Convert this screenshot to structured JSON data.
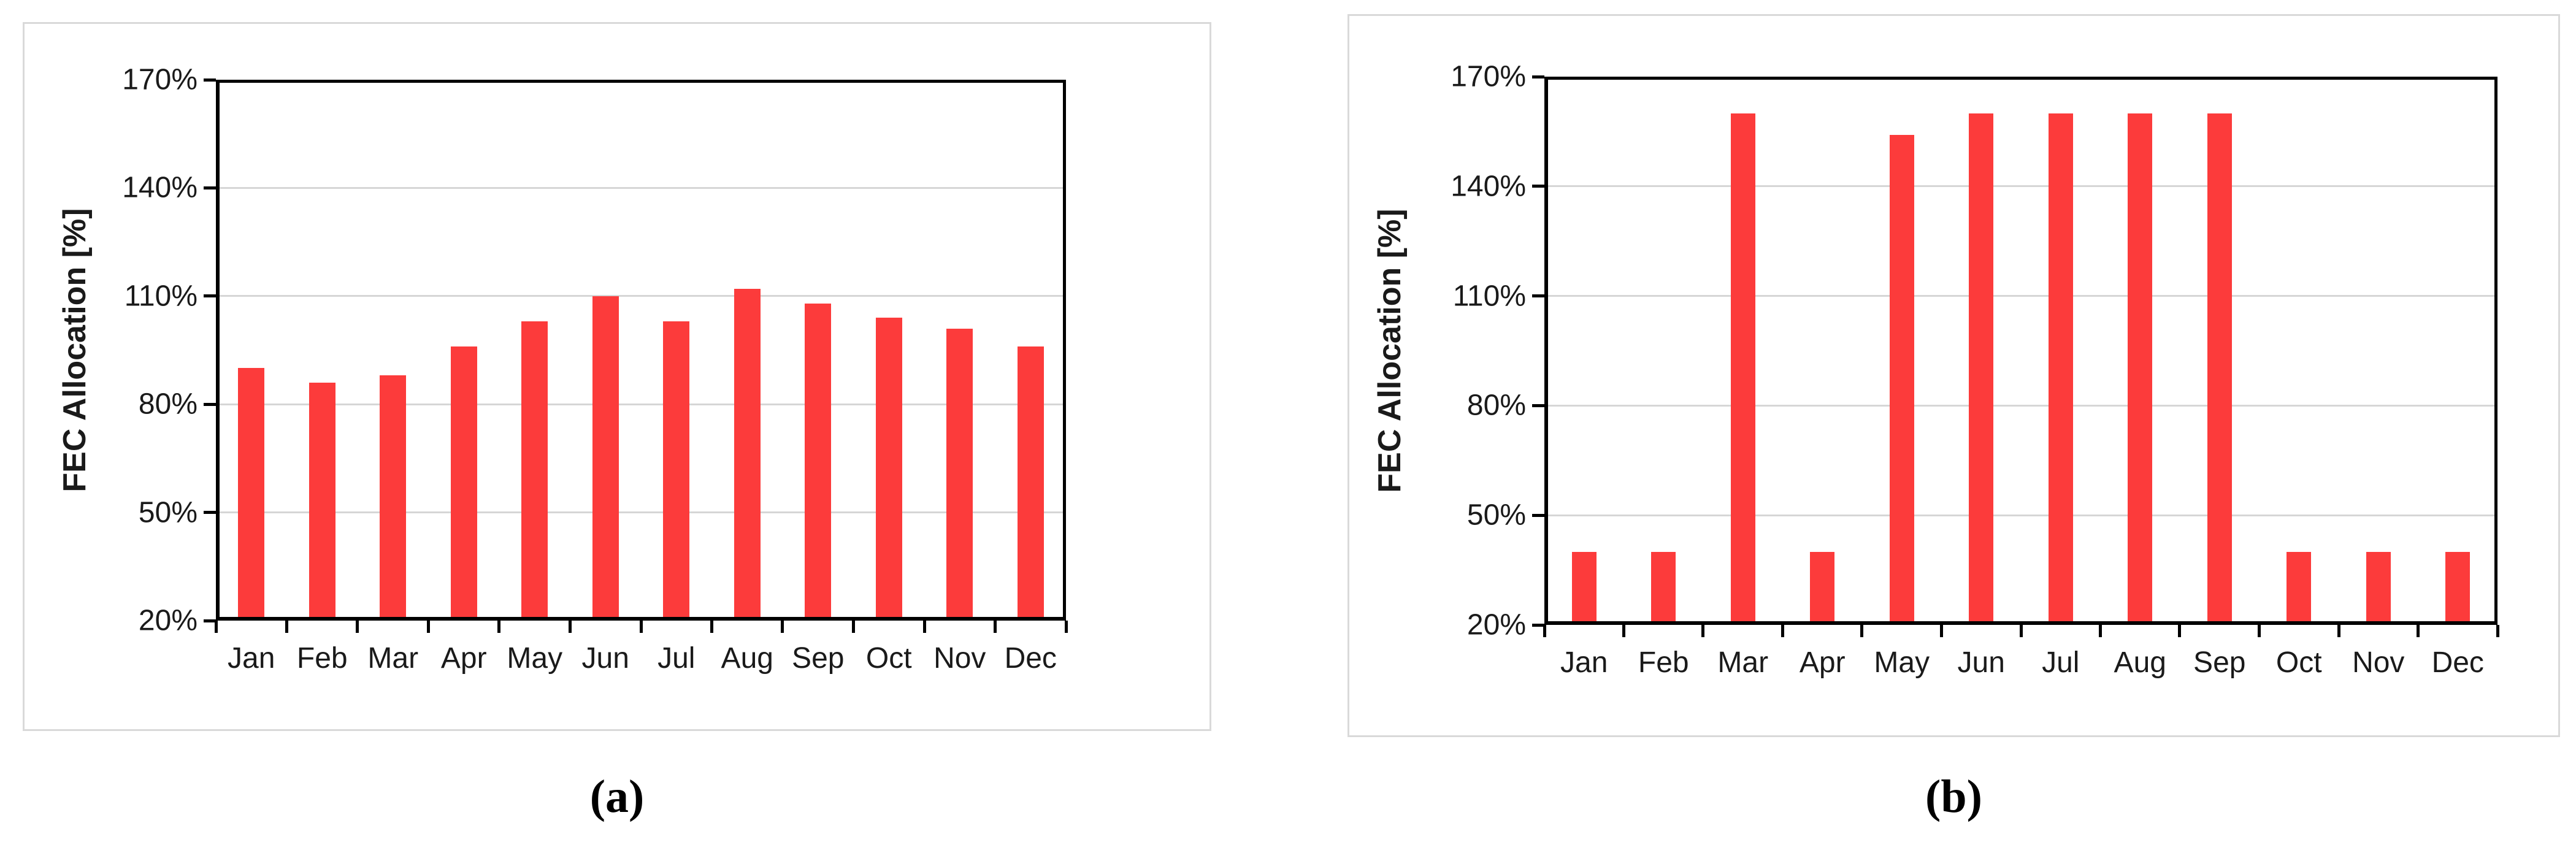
{
  "figure": {
    "ylabel": "FEC Allocation [%]",
    "caption_a": "(a)",
    "caption_b": "(b)"
  },
  "colors": {
    "bar_red": "#FC3B3B",
    "gridline_gray": "#D6D6D6",
    "panel_border_gray": "#D9D9D9",
    "axis_black": "#000000"
  },
  "chart_data": [
    {
      "id": "a",
      "type": "bar",
      "caption": "(a)",
      "title": "",
      "xlabel": "",
      "ylabel": "FEC Allocation [%]",
      "categories": [
        "Jan",
        "Feb",
        "Mar",
        "Apr",
        "May",
        "Jun",
        "Jul",
        "Aug",
        "Sep",
        "Oct",
        "Nov",
        "Dec"
      ],
      "values": [
        90,
        86,
        88,
        96,
        103,
        110,
        103,
        112,
        108,
        104,
        101,
        96
      ],
      "ylim": [
        20,
        170
      ],
      "yticks": [
        170,
        140,
        110,
        80,
        50,
        20
      ],
      "ytick_labels": [
        "170%",
        "140%",
        "110%",
        "80%",
        "50%",
        "20%"
      ],
      "grid": "horizontal",
      "legend": "none",
      "bar_color": "#FC3B3B",
      "gridline_color": "#D6D6D6"
    },
    {
      "id": "b",
      "type": "bar",
      "caption": "(b)",
      "title": "",
      "xlabel": "",
      "ylabel": "FEC Allocation [%]",
      "categories": [
        "Jan",
        "Feb",
        "Mar",
        "Apr",
        "May",
        "Jun",
        "Jul",
        "Aug",
        "Sep",
        "Oct",
        "Nov",
        "Dec"
      ],
      "values": [
        40,
        40,
        160,
        40,
        154,
        160,
        160,
        160,
        160,
        40,
        40,
        40
      ],
      "ylim": [
        20,
        170
      ],
      "yticks": [
        170,
        140,
        110,
        80,
        50,
        20
      ],
      "ytick_labels": [
        "170%",
        "140%",
        "110%",
        "80%",
        "50%",
        "20%"
      ],
      "grid": "horizontal",
      "legend": "none",
      "bar_color": "#FC3B3B",
      "gridline_color": "#D6D6D6"
    }
  ]
}
